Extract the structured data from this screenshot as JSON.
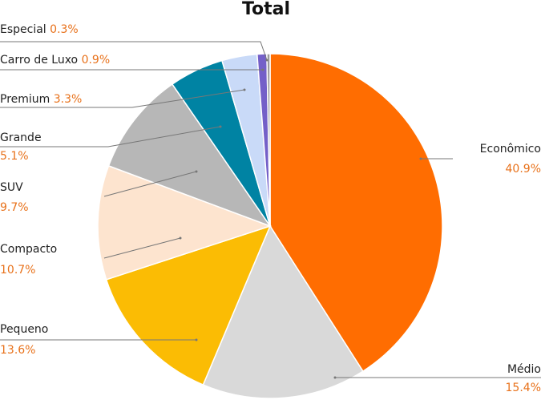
{
  "chart_data": {
    "type": "pie",
    "title": "Total",
    "categories": [
      "Econômico",
      "Médio",
      "Pequeno",
      "Compacto",
      "SUV",
      "Grande",
      "Premium",
      "Carro de Luxo",
      "Especial"
    ],
    "values": [
      40.9,
      15.4,
      13.6,
      10.7,
      9.7,
      5.1,
      3.3,
      0.9,
      0.3
    ],
    "value_labels": [
      "40.9%",
      "15.4%",
      "13.6%",
      "10.7%",
      "9.7%",
      "5.1%",
      "3.3%",
      "0.9%",
      "0.3%"
    ],
    "colors": [
      "#ff6d01",
      "#d9d9d9",
      "#fbbc04",
      "#fde4cf",
      "#b7b7b7",
      "#0083a3",
      "#c9daf8",
      "#7460c8",
      "#9a9a9a"
    ]
  }
}
